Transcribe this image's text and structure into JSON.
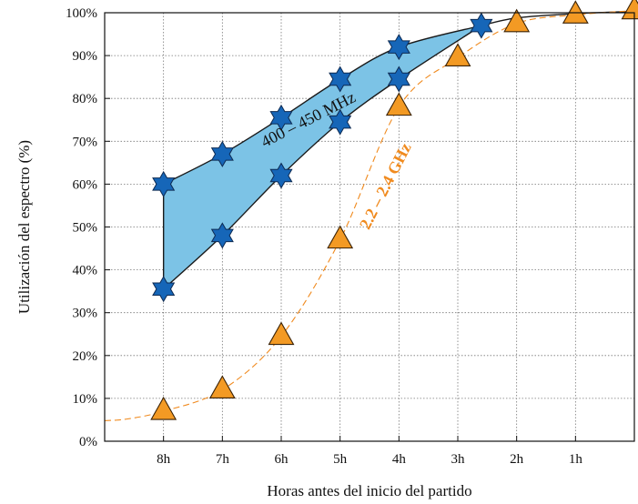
{
  "chart_data": {
    "type": "line",
    "xlabel": "Horas antes del inicio del partido",
    "ylabel": "Utilización del espectro (%)",
    "ylim": [
      0,
      100
    ],
    "xlim": [
      9,
      0
    ],
    "grid": true,
    "x_ticks": [
      {
        "x": 8,
        "label": "8h"
      },
      {
        "x": 7,
        "label": "7h"
      },
      {
        "x": 6,
        "label": "6h"
      },
      {
        "x": 5,
        "label": "5h"
      },
      {
        "x": 4,
        "label": "4h"
      },
      {
        "x": 3,
        "label": "3h"
      },
      {
        "x": 2,
        "label": "2h"
      },
      {
        "x": 1,
        "label": "1h"
      }
    ],
    "y_ticks": [
      {
        "y": 0,
        "label": "0%"
      },
      {
        "y": 10,
        "label": "10%"
      },
      {
        "y": 20,
        "label": "20%"
      },
      {
        "y": 30,
        "label": "30%"
      },
      {
        "y": 40,
        "label": "40%"
      },
      {
        "y": 50,
        "label": "50%"
      },
      {
        "y": 60,
        "label": "60%"
      },
      {
        "y": 70,
        "label": "70%"
      },
      {
        "y": 80,
        "label": "80%"
      },
      {
        "y": 90,
        "label": "90%"
      },
      {
        "y": 100,
        "label": "100%"
      }
    ],
    "band": {
      "label": "400 – 450 MHz",
      "fill_color": "#7cc3e6",
      "edge_color": "#1a1a1a",
      "marker": "star",
      "marker_color": "#1666b8",
      "upper": [
        {
          "x": 8,
          "y": 60
        },
        {
          "x": 7,
          "y": 67
        },
        {
          "x": 6,
          "y": 75.5
        },
        {
          "x": 5,
          "y": 84.5
        },
        {
          "x": 4,
          "y": 92
        },
        {
          "x": 2.6,
          "y": 97
        }
      ],
      "lower": [
        {
          "x": 8,
          "y": 35.5
        },
        {
          "x": 7,
          "y": 48
        },
        {
          "x": 6,
          "y": 62
        },
        {
          "x": 5,
          "y": 74.5
        },
        {
          "x": 4,
          "y": 84.5
        },
        {
          "x": 2.6,
          "y": 97
        }
      ],
      "tail": [
        {
          "x": 2.6,
          "y": 97
        },
        {
          "x": 2,
          "y": 98.8
        },
        {
          "x": 1,
          "y": 99.8
        },
        {
          "x": 0,
          "y": 100.3
        }
      ]
    },
    "series": [
      {
        "name": "2.2 – 2.4 GHz",
        "color": "#f08a1e",
        "marker": "triangle",
        "marker_fill": "#f39a24",
        "line_style": "dashed",
        "points": [
          {
            "x": 8,
            "y": 7
          },
          {
            "x": 7,
            "y": 12
          },
          {
            "x": 6,
            "y": 24.5
          },
          {
            "x": 5,
            "y": 47
          },
          {
            "x": 4,
            "y": 78
          },
          {
            "x": 3,
            "y": 89.5
          },
          {
            "x": 2,
            "y": 97.5
          },
          {
            "x": 1,
            "y": 99.5
          },
          {
            "x": 0,
            "y": 100.5
          }
        ]
      }
    ]
  }
}
